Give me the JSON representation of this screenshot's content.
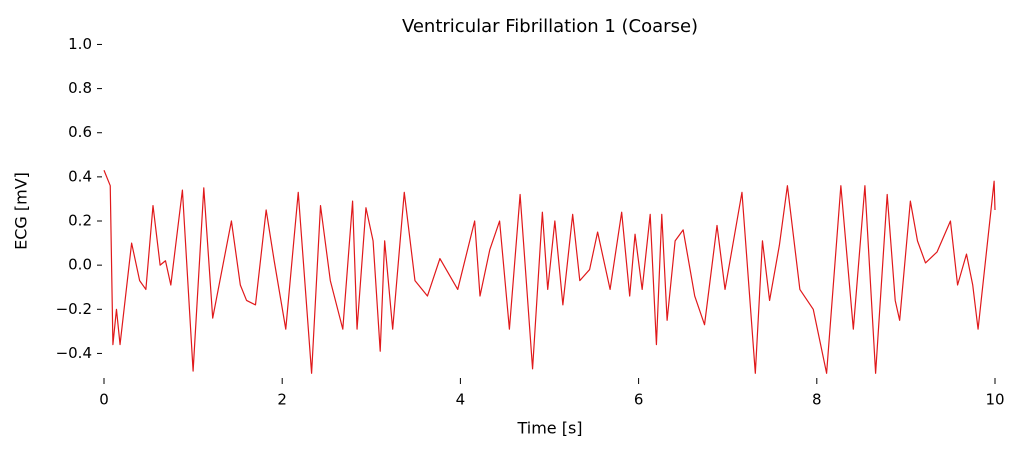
{
  "chart_data": {
    "type": "line",
    "title": "Ventricular Fibrillation 1 (Coarse)",
    "xlabel": "Time [s]",
    "ylabel": "ECG [mV]",
    "x": [
      0,
      0.07,
      0.1,
      0.14,
      0.18,
      0.31,
      0.4,
      0.47,
      0.55,
      0.63,
      0.69,
      0.75,
      0.88,
      1.0,
      1.12,
      1.22,
      1.43,
      1.53,
      1.6,
      1.7,
      1.82,
      1.91,
      2.04,
      2.18,
      2.33,
      2.43,
      2.54,
      2.68,
      2.79,
      2.84,
      2.94,
      3.02,
      3.1,
      3.15,
      3.24,
      3.37,
      3.49,
      3.63,
      3.77,
      3.97,
      4.16,
      4.22,
      4.33,
      4.44,
      4.55,
      4.67,
      4.81,
      4.92,
      4.98,
      5.06,
      5.15,
      5.26,
      5.34,
      5.45,
      5.54,
      5.68,
      5.81,
      5.9,
      5.96,
      6.04,
      6.13,
      6.2,
      6.26,
      6.32,
      6.41,
      6.5,
      6.63,
      6.74,
      6.88,
      6.97,
      7.16,
      7.31,
      7.39,
      7.47,
      7.58,
      7.67,
      7.81,
      7.96,
      8.11,
      8.27,
      8.41,
      8.54,
      8.66,
      8.79,
      8.88,
      8.93,
      9.05,
      9.13,
      9.22,
      9.35,
      9.5,
      9.58,
      9.68,
      9.75,
      9.81,
      9.99,
      10.0
    ],
    "series": [
      {
        "color": "#e0191b",
        "values": [
          0.43,
          0.36,
          -0.36,
          -0.2,
          -0.36,
          0.1,
          -0.07,
          -0.11,
          0.27,
          0,
          0.02,
          -0.09,
          0.34,
          -0.48,
          0.35,
          -0.24,
          0.2,
          -0.09,
          -0.16,
          -0.18,
          0.25,
          0.02,
          -0.29,
          0.33,
          -0.49,
          0.27,
          -0.07,
          -0.29,
          0.29,
          -0.29,
          0.26,
          0.11,
          -0.39,
          0.11,
          -0.29,
          0.33,
          -0.07,
          -0.14,
          0.03,
          -0.11,
          0.2,
          -0.14,
          0.07,
          0.2,
          -0.29,
          0.32,
          -0.47,
          0.24,
          -0.11,
          0.2,
          -0.18,
          0.23,
          -0.07,
          -0.02,
          0.15,
          -0.11,
          0.24,
          -0.14,
          0.14,
          -0.11,
          0.23,
          -0.36,
          0.23,
          -0.25,
          0.11,
          0.16,
          -0.14,
          -0.27,
          0.18,
          -0.11,
          0.33,
          -0.49,
          0.11,
          -0.16,
          0.09,
          0.36,
          -0.11,
          -0.2,
          -0.49,
          0.36,
          -0.29,
          0.36,
          -0.49,
          0.32,
          -0.16,
          -0.25,
          0.29,
          0.11,
          0.01,
          0.06,
          0.2,
          -0.09,
          0.05,
          -0.09,
          -0.29,
          0.38,
          0.25
        ]
      }
    ],
    "xlim": [
      0,
      10
    ],
    "xticks": [
      0,
      2,
      4,
      6,
      8,
      10
    ],
    "ylim": [
      -0.5,
      1.0
    ],
    "yticks": [
      {
        "value": -0.4,
        "label": "−0.4"
      },
      {
        "value": -0.2,
        "label": "−0.2"
      },
      {
        "value": 0,
        "label": "0.0"
      },
      {
        "value": 0.2,
        "label": "0.2"
      },
      {
        "value": 0.4,
        "label": "0.4"
      },
      {
        "value": 0.6,
        "label": "0.6"
      },
      {
        "value": 0.8,
        "label": "0.8"
      },
      {
        "value": 1.0,
        "label": "1.0"
      }
    ],
    "grid": false
  }
}
